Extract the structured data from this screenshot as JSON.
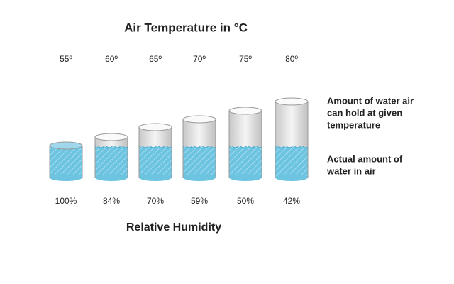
{
  "title": "Air Temperature in °C",
  "cylinders": [
    {
      "temperature": "55º",
      "humidity": "100%"
    },
    {
      "temperature": "60º",
      "humidity": "84%"
    },
    {
      "temperature": "65º",
      "humidity": "70%"
    },
    {
      "temperature": "70º",
      "humidity": "59%"
    },
    {
      "temperature": "75º",
      "humidity": "50%"
    },
    {
      "temperature": "80º",
      "humidity": "42%"
    }
  ],
  "capacity_label": [
    "Amount of water air",
    "can hold at given",
    "temperature"
  ],
  "actual_label": [
    "Actual amount of",
    "water in air"
  ],
  "footer": "Relative Humidity"
}
